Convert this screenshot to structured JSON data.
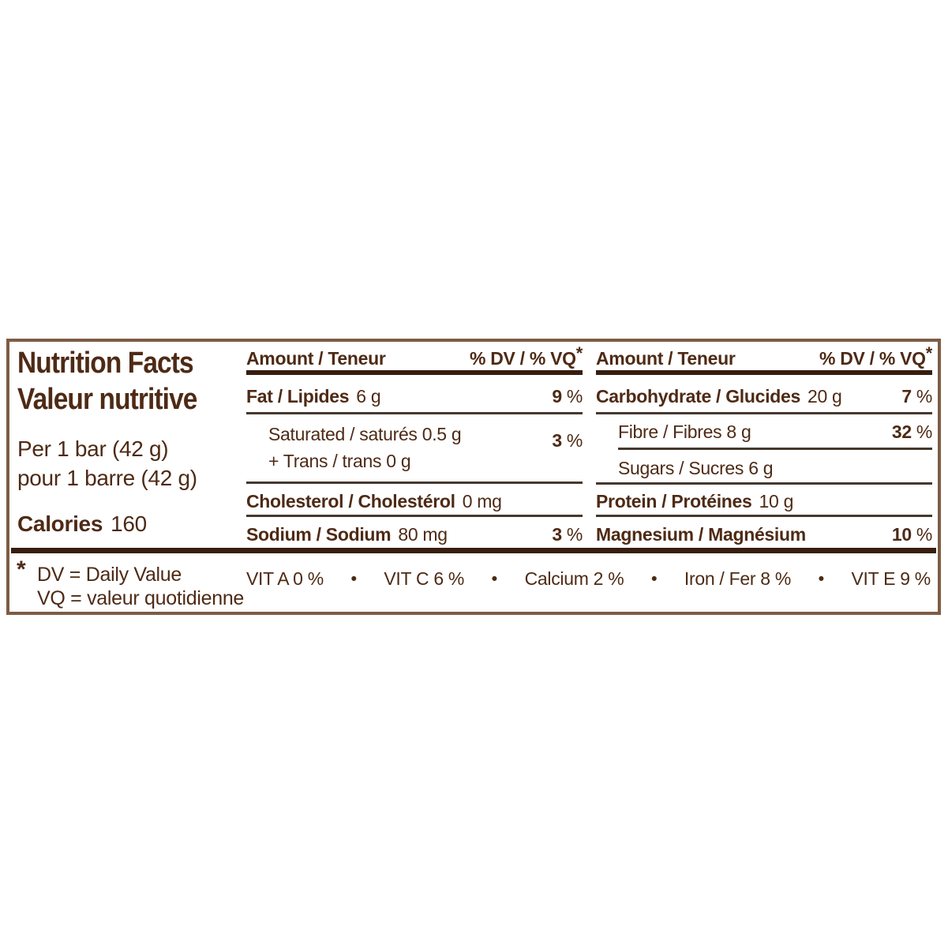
{
  "colors": {
    "text": "#4e2a15",
    "rule_thick": "#371e0e",
    "rule_thin": "#46382e",
    "outer_border": "#7e5c45",
    "background": "#ffffff"
  },
  "label": {
    "title_en": "Nutrition Facts",
    "title_fr": "Valeur nutritive",
    "serving_en": "Per 1 bar (42 g)",
    "serving_fr": "pour 1 barre (42 g)",
    "calories": {
      "label": "Calories",
      "value": "160"
    }
  },
  "columns": {
    "left": {
      "header": {
        "amount": "Amount / Teneur",
        "dv": "% DV / % VQ",
        "star": "*"
      },
      "fat": {
        "label": "Fat / Lipides",
        "amount": "6 g",
        "dv": "9",
        "unit": "%"
      },
      "saturated": {
        "line1": "Saturated / saturés 0.5 g",
        "line2": "+ Trans / trans 0 g",
        "dv": "3",
        "unit": "%"
      },
      "cholesterol": {
        "label": "Cholesterol / Cholestérol",
        "amount": "0 mg"
      },
      "sodium": {
        "label": "Sodium / Sodium",
        "amount": "80 mg",
        "dv": "3",
        "unit": "%"
      }
    },
    "right": {
      "header": {
        "amount": "Amount / Teneur",
        "dv": "% DV / % VQ",
        "star": "*"
      },
      "carbohydrate": {
        "label": "Carbohydrate / Glucides",
        "amount": "20 g",
        "dv": "7",
        "unit": "%"
      },
      "fibre": {
        "label": "Fibre / Fibres 8 g",
        "dv": "32",
        "unit": "%"
      },
      "sugars": {
        "label": "Sugars / Sucres 6 g"
      },
      "protein": {
        "label": "Protein / Protéines",
        "amount": "10 g"
      },
      "magnesium": {
        "label": "Magnesium / Magnésium",
        "dv": "10",
        "unit": "%"
      }
    }
  },
  "footnote": {
    "star": "*",
    "line1": "DV = Daily Value",
    "line2": "VQ = valeur quotidienne"
  },
  "micronutrients": {
    "separator": "•",
    "items": [
      "VIT A  0 %",
      "VIT C 6 %",
      "Calcium 2 %",
      "Iron / Fer  8 %",
      "VIT E  9 %"
    ]
  }
}
